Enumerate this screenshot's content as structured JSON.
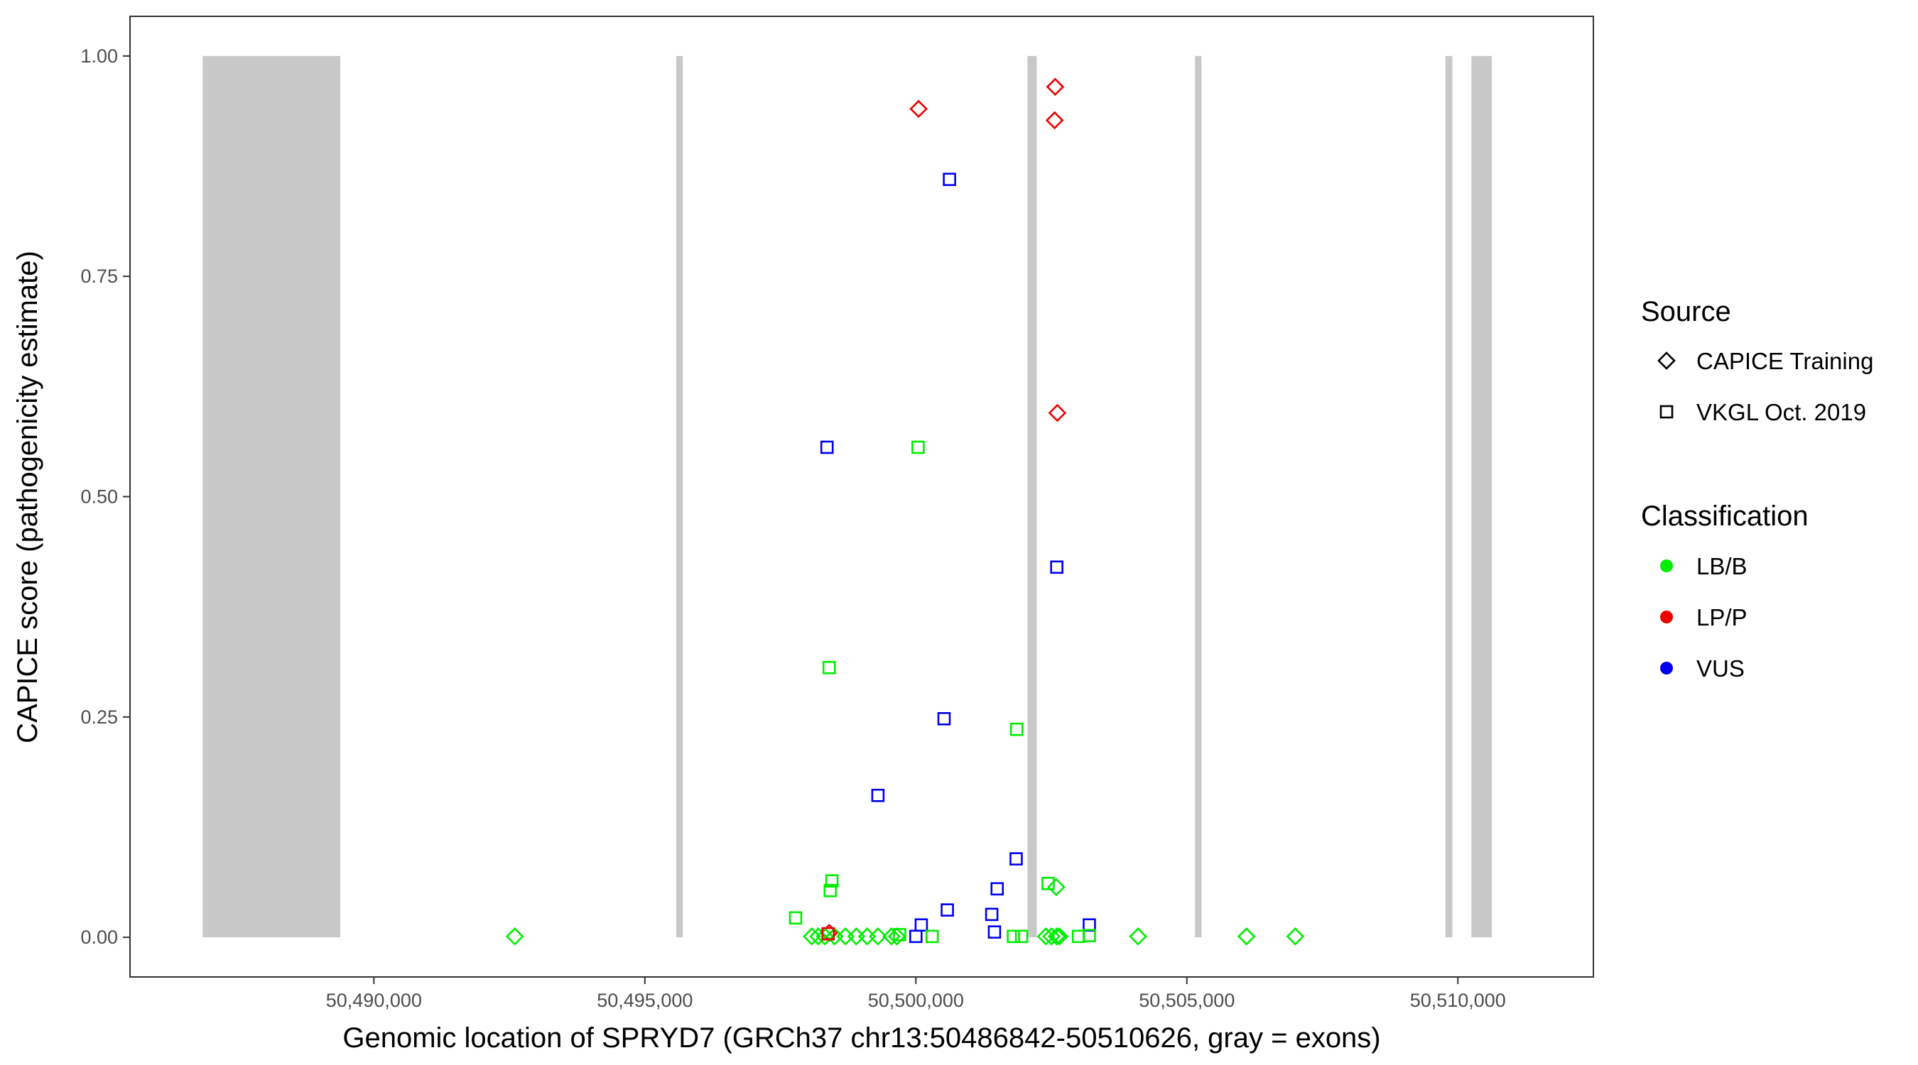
{
  "chart_data": {
    "type": "scatter",
    "title": "",
    "xlabel": "Genomic location of SPRYD7 (GRCh37 chr13:50486842-50510626, gray = exons)",
    "ylabel": "CAPICE score (pathogenicity estimate)",
    "xlim": [
      50485500,
      50512500
    ],
    "ylim": [
      -0.045,
      1.045
    ],
    "x_ticks": [
      50490000,
      50495000,
      50500000,
      50505000,
      50510000
    ],
    "x_tick_labels": [
      "50,490,000",
      "50,495,000",
      "50,500,000",
      "50,505,000",
      "50,510,000"
    ],
    "y_ticks": [
      0,
      0.25,
      0.5,
      0.75,
      1
    ],
    "y_tick_labels": [
      "0.00",
      "0.25",
      "0.50",
      "0.75",
      "1.00"
    ],
    "grid": false,
    "exons": [
      {
        "start": 50486842,
        "end": 50489380
      },
      {
        "start": 50495580,
        "end": 50495700
      },
      {
        "start": 50502060,
        "end": 50502230
      },
      {
        "start": 50505150,
        "end": 50505270
      },
      {
        "start": 50509770,
        "end": 50509900
      },
      {
        "start": 50510250,
        "end": 50510626
      }
    ],
    "exon_color": "#c8c8c8",
    "colors": {
      "LB/B": "#00ee00",
      "LP/P": "#ee0000",
      "VUS": "#0000ee"
    },
    "legend": {
      "placement": "right",
      "source_title": "Source",
      "source_entries": [
        {
          "label": "CAPICE Training",
          "shape": "diamond"
        },
        {
          "label": "VKGL Oct. 2019",
          "shape": "square"
        }
      ],
      "class_title": "Classification",
      "class_entries": [
        {
          "label": "LB/B",
          "color": "#00ee00"
        },
        {
          "label": "LP/P",
          "color": "#ee0000"
        },
        {
          "label": "VUS",
          "color": "#0000ee"
        }
      ]
    },
    "series": [
      {
        "source": "CAPICE Training",
        "classification": "LP/P",
        "shape": "diamond",
        "x": [
          50500050,
          50502570,
          50502560,
          50502610,
          50498400
        ],
        "y": [
          0.94,
          0.965,
          0.927,
          0.595,
          0.005
        ]
      },
      {
        "source": "CAPICE Training",
        "classification": "LB/B",
        "shape": "diamond",
        "x": [
          50492600,
          50498080,
          50498200,
          50498320,
          50498500,
          50498700,
          50498900,
          50499100,
          50499300,
          50499550,
          50499650,
          50502400,
          50502500,
          50502600,
          50502650,
          50504100,
          50506100,
          50507000,
          50502590
        ],
        "y": [
          0.001,
          0.001,
          0.001,
          0.001,
          0.001,
          0.001,
          0.001,
          0.001,
          0.001,
          0.001,
          0.001,
          0.001,
          0.001,
          0.001,
          0.001,
          0.001,
          0.001,
          0.001,
          0.057
        ]
      },
      {
        "source": "VKGL Oct. 2019",
        "classification": "VUS",
        "shape": "square",
        "x": [
          50500620,
          50498360,
          50502600,
          50500520,
          50499300,
          50501850,
          50501500,
          50500580,
          50501400,
          50500100,
          50501450,
          50503200,
          50500000
        ],
        "y": [
          0.86,
          0.556,
          0.42,
          0.248,
          0.161,
          0.089,
          0.055,
          0.031,
          0.026,
          0.014,
          0.006,
          0.014,
          0.001
        ]
      },
      {
        "source": "VKGL Oct. 2019",
        "classification": "LB/B",
        "shape": "square",
        "x": [
          50500040,
          50498400,
          50501860,
          50498450,
          50498420,
          50502440,
          50497780,
          50499700,
          50500300,
          50501800,
          50501950,
          50503000,
          50503200
        ],
        "y": [
          0.556,
          0.306,
          0.236,
          0.064,
          0.053,
          0.061,
          0.022,
          0.003,
          0.001,
          0.001,
          0.001,
          0.001,
          0.002
        ]
      },
      {
        "source": "VKGL Oct. 2019",
        "classification": "LP/P",
        "shape": "square",
        "x": [
          50498380
        ],
        "y": [
          0.004
        ]
      }
    ]
  }
}
